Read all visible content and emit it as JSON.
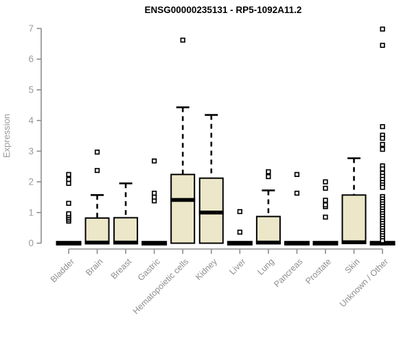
{
  "title": "ENSG00000235131 - RP5-1092A11.2",
  "colors": {
    "box_fill": "#ECE7C9",
    "box_stroke": "#000000",
    "whisker": "#000000",
    "outlier": "#000000",
    "axis": "#8C8C8C",
    "tick_label": "#9A9A9A",
    "category_label": "#8E8E8E",
    "title_color": "#000000",
    "background": "#FFFFFF"
  },
  "chart_data": {
    "type": "boxplot",
    "title": "ENSG00000235131 - RP5-1092A11.2",
    "xlabel": "",
    "ylabel": "Expression",
    "ylim": [
      0,
      7
    ],
    "yticks": [
      0,
      1,
      2,
      3,
      4,
      5,
      6,
      7
    ],
    "grid": false,
    "legend": "none",
    "categories": [
      "Bladder",
      "Brain",
      "Breast",
      "Gastric",
      "Hematopoietic cells",
      "Kidney",
      "Liver",
      "Lung",
      "Pancreas",
      "Prostate",
      "Skin",
      "Unknown / Other"
    ],
    "series": [
      {
        "name": "Bladder",
        "q1": 0,
        "median": 0,
        "q3": 0,
        "whisker_low": 0,
        "whisker_high": 0,
        "outliers": [
          0.72,
          0.78,
          0.84,
          0.9,
          0.96,
          1.3,
          1.95,
          2.08,
          2.24
        ]
      },
      {
        "name": "Brain",
        "q1": 0,
        "median": 0.02,
        "q3": 0.82,
        "whisker_low": 0,
        "whisker_high": 1.57,
        "outliers": [
          2.37,
          2.97
        ]
      },
      {
        "name": "Breast",
        "q1": 0,
        "median": 0.02,
        "q3": 0.83,
        "whisker_low": 0,
        "whisker_high": 1.95,
        "outliers": []
      },
      {
        "name": "Gastric",
        "q1": 0,
        "median": 0,
        "q3": 0,
        "whisker_low": 0,
        "whisker_high": 0,
        "outliers": [
          1.38,
          1.5,
          1.63,
          2.68
        ]
      },
      {
        "name": "Hematopoietic cells",
        "q1": 0,
        "median": 1.41,
        "q3": 2.24,
        "whisker_low": 0,
        "whisker_high": 4.43,
        "outliers": [
          6.62
        ]
      },
      {
        "name": "Kidney",
        "q1": 0,
        "median": 1.0,
        "q3": 2.12,
        "whisker_low": 0,
        "whisker_high": 4.18,
        "outliers": []
      },
      {
        "name": "Liver",
        "q1": 0,
        "median": 0,
        "q3": 0,
        "whisker_low": 0,
        "whisker_high": 0,
        "outliers": [
          0.36,
          1.03
        ]
      },
      {
        "name": "Lung",
        "q1": 0,
        "median": 0.02,
        "q3": 0.87,
        "whisker_low": 0,
        "whisker_high": 1.72,
        "outliers": [
          2.17,
          2.33
        ]
      },
      {
        "name": "Pancreas",
        "q1": 0,
        "median": 0,
        "q3": 0,
        "whisker_low": 0,
        "whisker_high": 0,
        "outliers": [
          1.63,
          2.24
        ]
      },
      {
        "name": "Prostate",
        "q1": 0,
        "median": 0,
        "q3": 0,
        "whisker_low": 0,
        "whisker_high": 0,
        "outliers": [
          0.85,
          1.19,
          1.25,
          1.4,
          1.79,
          2.0
        ]
      },
      {
        "name": "Skin",
        "q1": 0,
        "median": 0.03,
        "q3": 1.57,
        "whisker_low": 0,
        "whisker_high": 2.77,
        "outliers": []
      },
      {
        "name": "Unknown / Other",
        "q1": 0,
        "median": 0,
        "q3": 0,
        "whisker_low": 0,
        "whisker_high": 0,
        "outliers": [
          6.98,
          6.45,
          3.8,
          3.52,
          3.42,
          3.22,
          3.06,
          2.52,
          2.42,
          2.28,
          2.18,
          2.08,
          1.98,
          1.9,
          1.82,
          1.52,
          1.44,
          1.36,
          1.28,
          1.2,
          1.12,
          1.04,
          0.96,
          0.88,
          0.8,
          0.72,
          0.64,
          0.56,
          0.48,
          0.4,
          0.32,
          0.24,
          0.16,
          0.08
        ]
      }
    ]
  }
}
